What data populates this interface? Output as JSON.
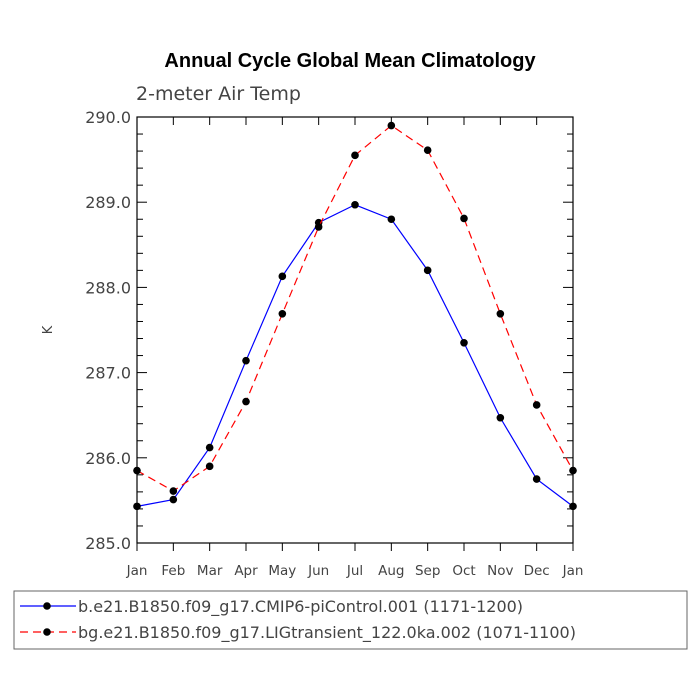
{
  "chart_data": {
    "type": "line",
    "title": "Annual Cycle Global Mean Climatology",
    "subtitle": "2-meter Air Temp",
    "xlabel": "",
    "ylabel": "K",
    "categories": [
      "Jan",
      "Feb",
      "Mar",
      "Apr",
      "May",
      "Jun",
      "Jul",
      "Aug",
      "Sep",
      "Oct",
      "Nov",
      "Dec",
      "Jan"
    ],
    "ylim": [
      285.0,
      290.0
    ],
    "yticks": [
      285.0,
      286.0,
      287.0,
      288.0,
      289.0,
      290.0
    ],
    "ytick_labels": [
      "285.0",
      "286.0",
      "287.0",
      "288.0",
      "289.0",
      "290.0"
    ],
    "grid": false,
    "legend_position": "bottom",
    "series": [
      {
        "name": "b.e21.B1850.f09_g17.CMIP6-piControl.001 (1171-1200)",
        "color": "#0000ff",
        "dash": "solid",
        "values": [
          285.43,
          285.51,
          286.12,
          287.14,
          288.13,
          288.76,
          288.97,
          288.8,
          288.2,
          287.35,
          286.47,
          285.75,
          285.43
        ]
      },
      {
        "name": "bg.e21.B1850.f09_g17.LIGtransient_122.0ka.002 (1071-1100)",
        "color": "#ff0000",
        "dash": "dashed",
        "values": [
          285.85,
          285.61,
          285.9,
          286.66,
          287.69,
          288.71,
          289.55,
          289.9,
          289.61,
          288.81,
          287.69,
          286.62,
          285.85
        ]
      }
    ]
  }
}
